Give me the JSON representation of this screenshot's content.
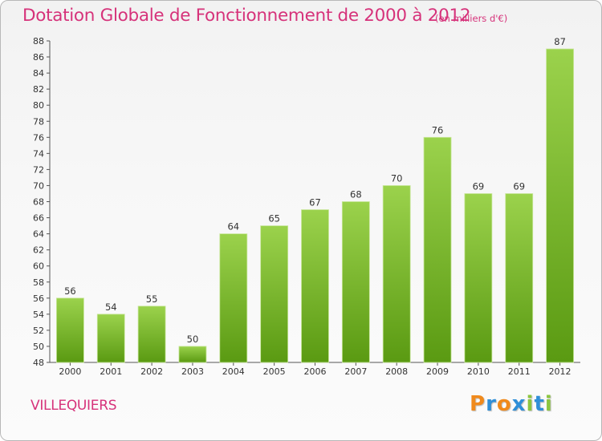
{
  "header": {
    "title": "Dotation Globale de Fonctionnement de 2000 à 2012",
    "subtitle": "(en milliers d'€)"
  },
  "footer": {
    "town": "VILLEQUIERS",
    "logo": "Proxiti"
  },
  "colors": {
    "accent": "#d6327a",
    "bar_top": "#9bd24c",
    "bar_bottom": "#5a9a12",
    "logo_letters": [
      "#f08a1c",
      "#2f8fd8",
      "#f08a1c",
      "#2f8fd8",
      "#8cc63f",
      "#2f8fd8",
      "#8cc63f"
    ]
  },
  "chart_data": {
    "type": "bar",
    "categories": [
      "2000",
      "2001",
      "2002",
      "2003",
      "2004",
      "2005",
      "2006",
      "2007",
      "2008",
      "2009",
      "2010",
      "2011",
      "2012"
    ],
    "values": [
      56,
      54,
      55,
      50,
      64,
      65,
      67,
      68,
      70,
      76,
      69,
      69,
      87
    ],
    "ylim": [
      48,
      88
    ],
    "yticks": [
      48,
      50,
      52,
      54,
      56,
      58,
      60,
      62,
      64,
      66,
      68,
      70,
      72,
      74,
      76,
      78,
      80,
      82,
      84,
      86,
      88
    ],
    "grid": false,
    "data_labels": true
  }
}
